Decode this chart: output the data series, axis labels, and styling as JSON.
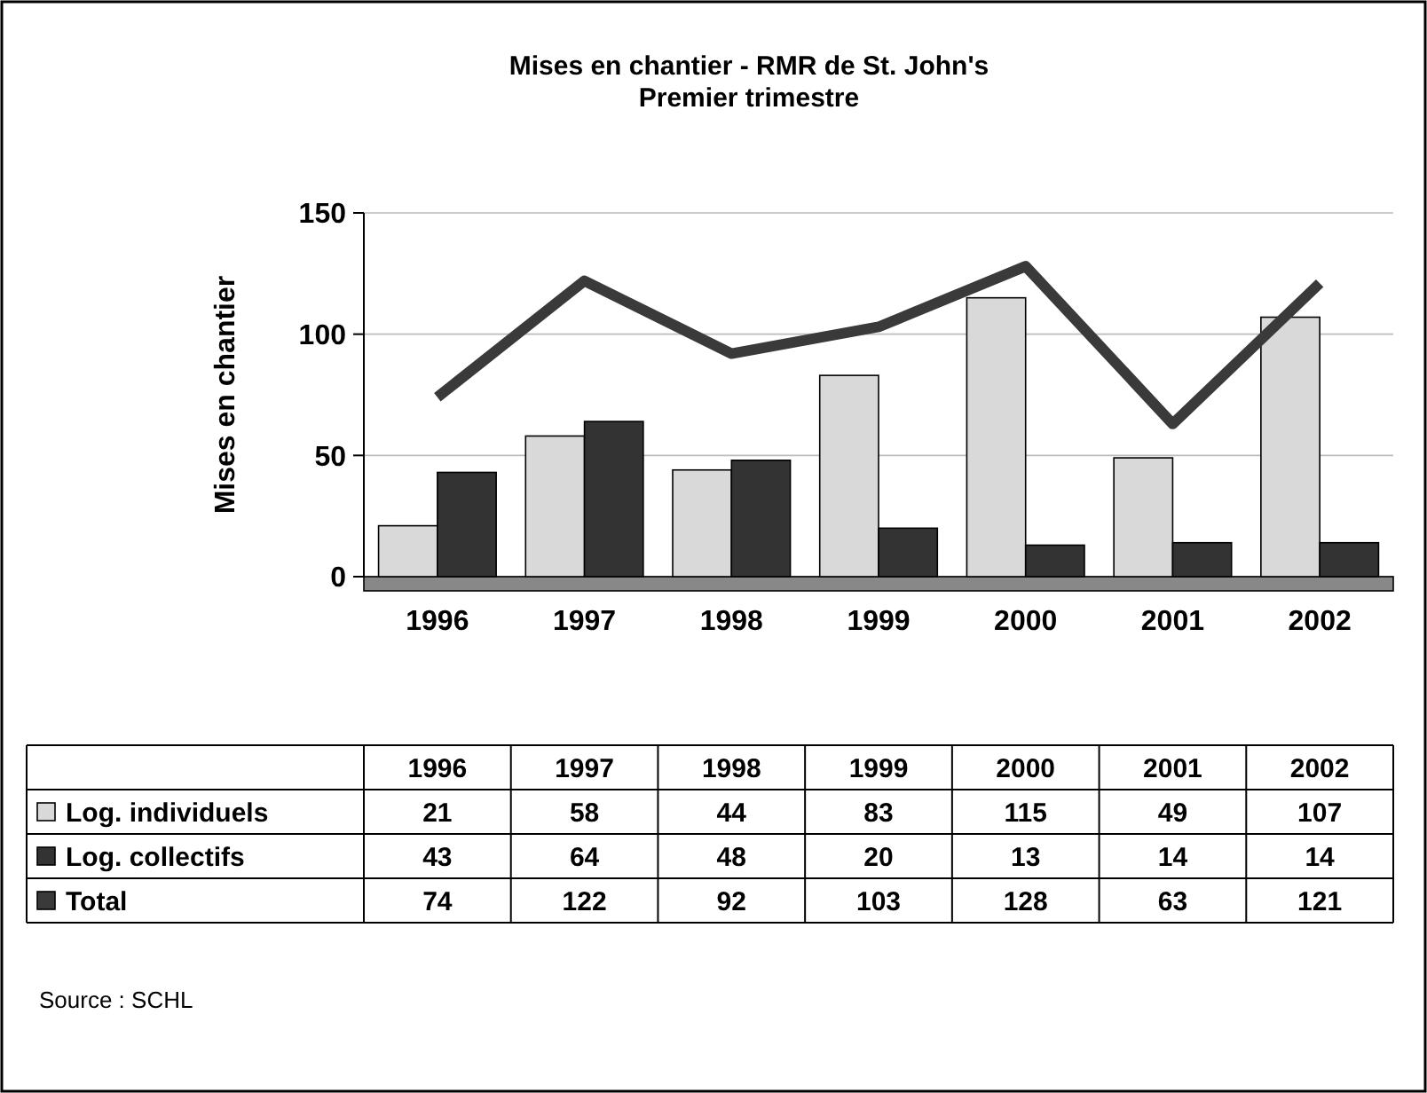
{
  "chart_data": {
    "type": "bar",
    "title": "Mises en chantier - RMR de St. John's",
    "subtitle": "Premier trimestre",
    "ylabel": "Mises en chantier",
    "categories": [
      "1996",
      "1997",
      "1998",
      "1999",
      "2000",
      "2001",
      "2002"
    ],
    "series": [
      {
        "name": "Log. individuels",
        "color": "#d9d9d9",
        "values": [
          21,
          58,
          44,
          83,
          115,
          49,
          107
        ]
      },
      {
        "name": "Log. collectifs",
        "color": "#333333",
        "values": [
          43,
          64,
          48,
          20,
          13,
          14,
          14
        ]
      },
      {
        "name": "Total",
        "type": "line",
        "color": "#3a3a3a",
        "values": [
          74,
          122,
          92,
          103,
          128,
          63,
          121
        ]
      }
    ],
    "ylim": [
      0,
      150
    ],
    "yticks": [
      0,
      50,
      100,
      150
    ],
    "grid": "y",
    "data_labels": true,
    "legend": "bottom",
    "annotations": [
      "Source : SCHL"
    ]
  }
}
